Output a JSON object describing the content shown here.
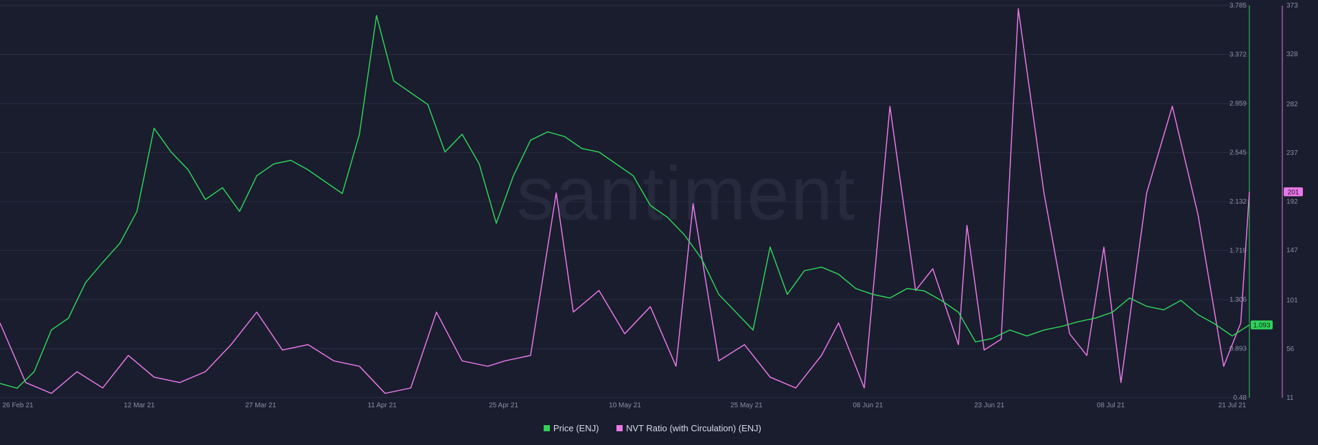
{
  "chart_data": {
    "type": "line",
    "watermark": "santiment",
    "x_ticks": [
      "26 Feb 21",
      "12 Mar 21",
      "27 Mar 21",
      "11 Apr 21",
      "25 Apr 21",
      "10 May 21",
      "25 May 21",
      "08 Jun 21",
      "23 Jun 21",
      "08 Jul 21",
      "21 Jul 21"
    ],
    "x_range": [
      "2021-02-25",
      "2021-07-21"
    ],
    "y_left_ticks": [
      "3.785",
      "3.372",
      "2.959",
      "2.545",
      "2.132",
      "1.719",
      "1.306",
      "0.893",
      "0.48"
    ],
    "y_left_range": [
      0.48,
      3.785
    ],
    "y_right_ticks": [
      "373",
      "328",
      "282",
      "237",
      "192",
      "147",
      "101",
      "56",
      "11"
    ],
    "y_right_range": [
      11,
      373
    ],
    "grid": true,
    "legend_position": "bottom",
    "last_price_badge": "1.093",
    "last_nvt_badge": "201",
    "colors": {
      "price": "#2fd35a",
      "nvt": "#e879e8",
      "background": "#1a1d2e",
      "grid": "#2a2e42",
      "text": "#8a8fa3"
    },
    "series": [
      {
        "name": "Price (ENJ)",
        "axis": "left",
        "x": [
          "2021-02-25",
          "2021-02-27",
          "2021-03-01",
          "2021-03-03",
          "2021-03-05",
          "2021-03-07",
          "2021-03-09",
          "2021-03-11",
          "2021-03-13",
          "2021-03-15",
          "2021-03-17",
          "2021-03-19",
          "2021-03-21",
          "2021-03-23",
          "2021-03-25",
          "2021-03-27",
          "2021-03-29",
          "2021-03-31",
          "2021-04-02",
          "2021-04-04",
          "2021-04-06",
          "2021-04-08",
          "2021-04-10",
          "2021-04-12",
          "2021-04-14",
          "2021-04-16",
          "2021-04-18",
          "2021-04-20",
          "2021-04-22",
          "2021-04-24",
          "2021-04-26",
          "2021-04-28",
          "2021-04-30",
          "2021-05-02",
          "2021-05-04",
          "2021-05-06",
          "2021-05-08",
          "2021-05-10",
          "2021-05-12",
          "2021-05-14",
          "2021-05-16",
          "2021-05-18",
          "2021-05-20",
          "2021-05-22",
          "2021-05-24",
          "2021-05-26",
          "2021-05-28",
          "2021-05-30",
          "2021-06-01",
          "2021-06-03",
          "2021-06-05",
          "2021-06-07",
          "2021-06-09",
          "2021-06-11",
          "2021-06-13",
          "2021-06-15",
          "2021-06-17",
          "2021-06-19",
          "2021-06-21",
          "2021-06-23",
          "2021-06-25",
          "2021-06-27",
          "2021-06-29",
          "2021-07-01",
          "2021-07-03",
          "2021-07-05",
          "2021-07-07",
          "2021-07-09",
          "2021-07-11",
          "2021-07-13",
          "2021-07-15",
          "2021-07-17",
          "2021-07-19",
          "2021-07-21"
        ],
        "values": [
          0.6,
          0.56,
          0.7,
          1.05,
          1.15,
          1.45,
          1.62,
          1.78,
          2.05,
          2.75,
          2.55,
          2.4,
          2.15,
          2.25,
          2.05,
          2.35,
          2.45,
          2.48,
          2.4,
          2.3,
          2.2,
          2.7,
          3.7,
          3.15,
          3.05,
          2.95,
          2.55,
          2.7,
          2.45,
          1.95,
          2.35,
          2.65,
          2.72,
          2.68,
          2.58,
          2.55,
          2.45,
          2.35,
          2.1,
          2.0,
          1.85,
          1.65,
          1.35,
          1.2,
          1.05,
          1.75,
          1.35,
          1.55,
          1.58,
          1.52,
          1.4,
          1.35,
          1.32,
          1.4,
          1.38,
          1.3,
          1.2,
          0.95,
          0.98,
          1.05,
          1.0,
          1.05,
          1.08,
          1.12,
          1.15,
          1.2,
          1.32,
          1.25,
          1.22,
          1.3,
          1.18,
          1.1,
          1.0,
          1.093
        ]
      },
      {
        "name": "NVT Ratio (with Circulation) (ENJ)",
        "axis": "right",
        "x": [
          "2021-02-25",
          "2021-02-28",
          "2021-03-03",
          "2021-03-06",
          "2021-03-09",
          "2021-03-12",
          "2021-03-15",
          "2021-03-18",
          "2021-03-21",
          "2021-03-24",
          "2021-03-27",
          "2021-03-30",
          "2021-04-02",
          "2021-04-05",
          "2021-04-08",
          "2021-04-11",
          "2021-04-14",
          "2021-04-17",
          "2021-04-20",
          "2021-04-23",
          "2021-04-25",
          "2021-04-28",
          "2021-05-01",
          "2021-05-03",
          "2021-05-06",
          "2021-05-09",
          "2021-05-12",
          "2021-05-15",
          "2021-05-17",
          "2021-05-20",
          "2021-05-23",
          "2021-05-26",
          "2021-05-29",
          "2021-06-01",
          "2021-06-03",
          "2021-06-06",
          "2021-06-09",
          "2021-06-12",
          "2021-06-14",
          "2021-06-17",
          "2021-06-18",
          "2021-06-20",
          "2021-06-22",
          "2021-06-24",
          "2021-06-27",
          "2021-06-30",
          "2021-07-02",
          "2021-07-04",
          "2021-07-06",
          "2021-07-09",
          "2021-07-12",
          "2021-07-15",
          "2021-07-18",
          "2021-07-20",
          "2021-07-21"
        ],
        "values": [
          80,
          25,
          15,
          35,
          20,
          50,
          30,
          25,
          35,
          60,
          90,
          55,
          60,
          45,
          40,
          15,
          20,
          90,
          45,
          40,
          45,
          50,
          200,
          90,
          110,
          70,
          95,
          40,
          190,
          45,
          60,
          30,
          20,
          50,
          80,
          20,
          280,
          110,
          130,
          60,
          170,
          55,
          65,
          370,
          200,
          70,
          50,
          150,
          25,
          200,
          280,
          180,
          40,
          80,
          201
        ]
      }
    ]
  }
}
